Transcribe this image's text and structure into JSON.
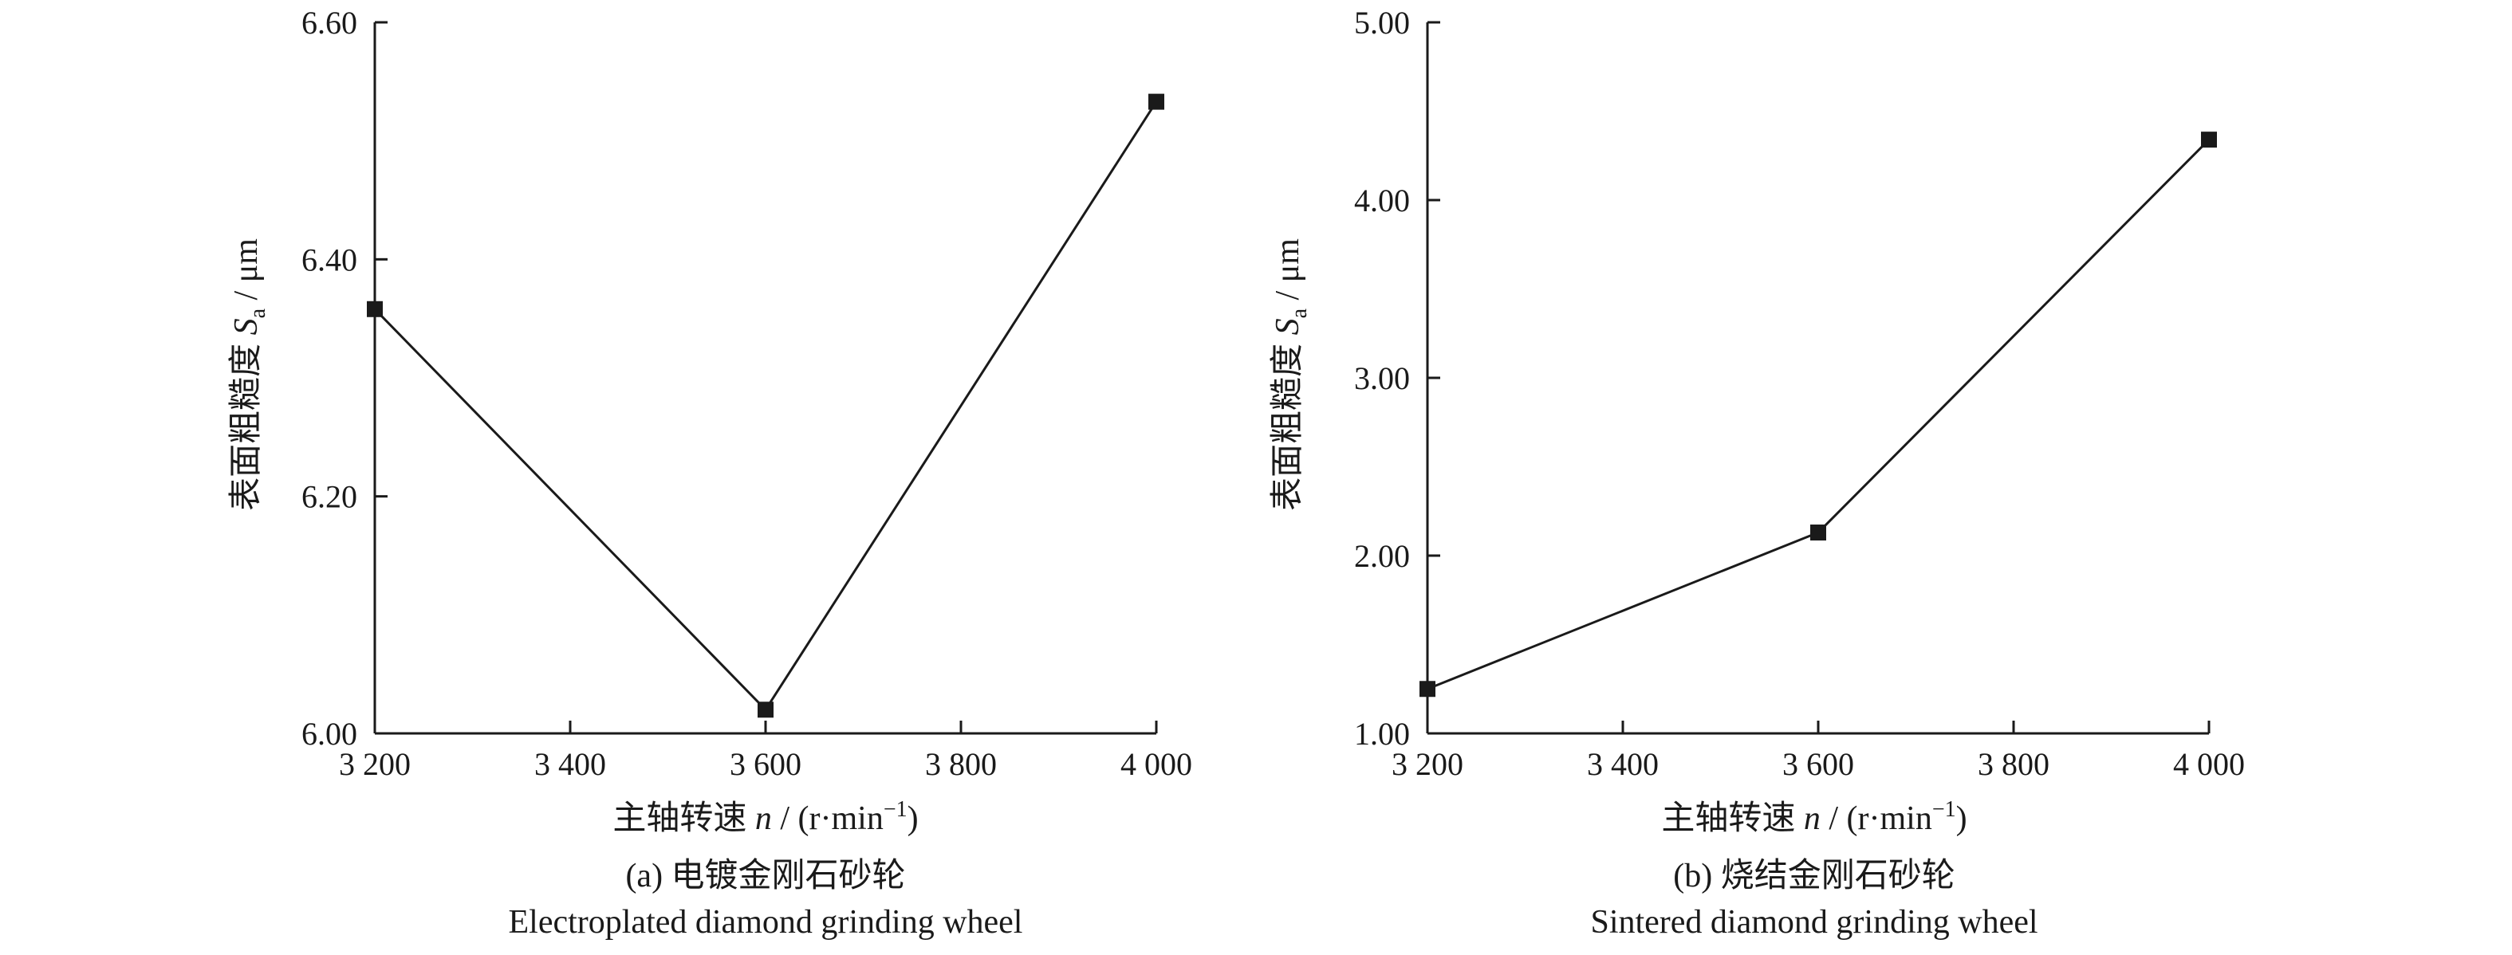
{
  "chart_data": [
    {
      "type": "line",
      "xlabel": "主轴转速 n / (r·min⁻¹)",
      "ylabel": "表面粗糙度 Sa / μm",
      "caption_cn": "(a) 电镀金刚石砂轮",
      "caption_en": "Electroplated diamond grinding wheel",
      "xlim": [
        3200,
        4000
      ],
      "ylim": [
        6.0,
        6.6
      ],
      "xticks": [
        3200,
        3400,
        3600,
        3800,
        4000
      ],
      "xtick_labels": [
        "3 200",
        "3 400",
        "3 600",
        "3 800",
        "4 000"
      ],
      "yticks": [
        6.0,
        6.2,
        6.4,
        6.6
      ],
      "ytick_labels": [
        "6.00",
        "6.20",
        "6.40",
        "6.60"
      ],
      "grid": false,
      "series": [
        {
          "x": [
            3200,
            3600,
            4000
          ],
          "y": [
            6.358,
            6.02,
            6.533
          ]
        }
      ]
    },
    {
      "type": "line",
      "xlabel": "主轴转速 n / (r·min⁻¹)",
      "ylabel": "表面粗糙度 Sa / μm",
      "caption_cn": "(b) 烧结金刚石砂轮",
      "caption_en": "Sintered diamond grinding wheel",
      "xlim": [
        3200,
        4000
      ],
      "ylim": [
        1.0,
        5.0
      ],
      "xticks": [
        3200,
        3400,
        3600,
        3800,
        4000
      ],
      "xtick_labels": [
        "3 200",
        "3 400",
        "3 600",
        "3 800",
        "4 000"
      ],
      "yticks": [
        1.0,
        2.0,
        3.0,
        4.0,
        5.0
      ],
      "ytick_labels": [
        "1.00",
        "2.00",
        "3.00",
        "4.00",
        "5.00"
      ],
      "grid": false,
      "series": [
        {
          "x": [
            3200,
            3600,
            4000
          ],
          "y": [
            1.25,
            2.13,
            4.34
          ]
        }
      ]
    }
  ]
}
